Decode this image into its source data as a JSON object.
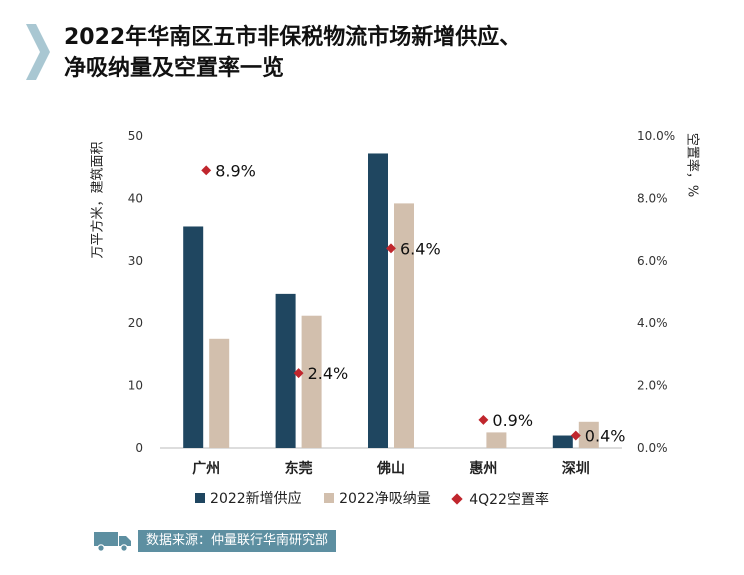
{
  "title": {
    "line1": "2022年华南区五市非保税物流市场新增供应、",
    "line2": "净吸纳量及空置率一览"
  },
  "colors": {
    "supply": "#1f4660",
    "absorption": "#d2bfad",
    "vacancy": "#c0262d",
    "accent": "#a9c7d2",
    "source_bg": "#5d8fa1"
  },
  "chart_data": {
    "type": "bar",
    "categories": [
      "广州",
      "东莞",
      "佛山",
      "惠州",
      "深圳"
    ],
    "series": [
      {
        "name": "2022新增供应",
        "axis": "left",
        "values": [
          35.5,
          24.7,
          47.2,
          0,
          2.0
        ]
      },
      {
        "name": "2022净吸纳量",
        "axis": "left",
        "values": [
          17.5,
          21.2,
          39.2,
          2.5,
          4.2
        ]
      },
      {
        "name": "4Q22空置率",
        "axis": "right",
        "kind": "scatter",
        "values": [
          8.9,
          2.4,
          6.4,
          0.9,
          0.4
        ],
        "labels": [
          "8.9%",
          "2.4%",
          "6.4%",
          "0.9%",
          "0.4%"
        ]
      }
    ],
    "ylabel": "万平方米，建筑面积",
    "y2label": "空置率，%",
    "ylim": [
      0,
      50
    ],
    "y2lim": [
      0,
      10
    ],
    "yticks": [
      "0",
      "10",
      "20",
      "30",
      "40",
      "50"
    ],
    "y2ticks": [
      "0.0%",
      "2.0%",
      "4.0%",
      "6.0%",
      "8.0%",
      "10.0%"
    ],
    "grid": false,
    "legend_position": "bottom"
  },
  "legend": {
    "supply": "2022新增供应",
    "absorption": "2022净吸纳量",
    "vacancy": "4Q22空置率"
  },
  "source": {
    "icon": "truck-icon",
    "text": "数据来源：仲量联行华南研究部"
  }
}
